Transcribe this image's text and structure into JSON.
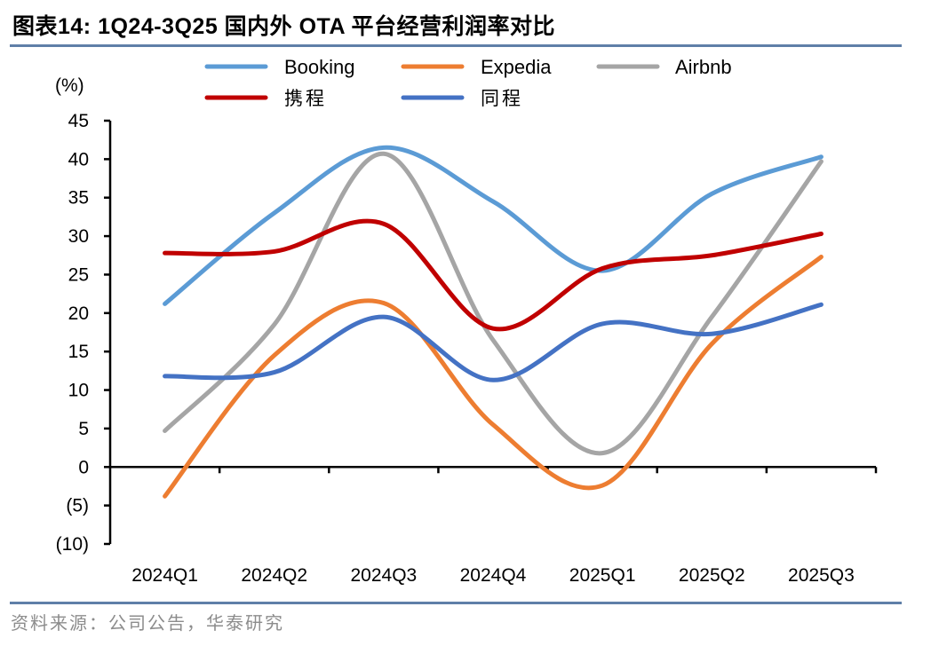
{
  "header": {
    "title": "图表14:  1Q24-3Q25 国内外 OTA 平台经营利润率对比"
  },
  "footer": {
    "source": "资料来源：公司公告，华泰研究"
  },
  "chart_data": {
    "type": "line",
    "title": "1Q24-3Q25 国内外 OTA 平台经营利润率对比",
    "ylabel": "(%)",
    "xlabel": "",
    "ylim": [
      -10,
      45
    ],
    "yticks": [
      45,
      40,
      35,
      30,
      25,
      20,
      15,
      10,
      5,
      0,
      -5,
      -10
    ],
    "ytick_labels": [
      "45",
      "40",
      "35",
      "30",
      "25",
      "20",
      "15",
      "10",
      "5",
      "0",
      "(5)",
      "(10)"
    ],
    "categories": [
      "2024Q1",
      "2024Q2",
      "2024Q3",
      "2024Q4",
      "2025Q1",
      "2025Q2",
      "2025Q3"
    ],
    "smooth": true,
    "grid": false,
    "legend_position": "top",
    "series": [
      {
        "name": "Booking",
        "color": "#5b9bd5",
        "values": [
          21.2,
          33.0,
          41.5,
          34.5,
          25.5,
          35.5,
          40.3
        ]
      },
      {
        "name": "Expedia",
        "color": "#ed7d31",
        "values": [
          -3.8,
          14.5,
          21.3,
          5.5,
          -2.4,
          16.0,
          27.3
        ]
      },
      {
        "name": "Airbnb",
        "color": "#a5a5a5",
        "values": [
          4.7,
          18.5,
          40.7,
          16.5,
          1.8,
          19.5,
          39.7
        ]
      },
      {
        "name": "携程",
        "color": "#c00000",
        "values": [
          27.8,
          28.0,
          31.6,
          18.0,
          25.8,
          27.5,
          30.3
        ]
      },
      {
        "name": "同程",
        "color": "#4472c4",
        "values": [
          11.8,
          12.3,
          19.5,
          11.3,
          18.6,
          17.3,
          21.1
        ]
      }
    ]
  }
}
